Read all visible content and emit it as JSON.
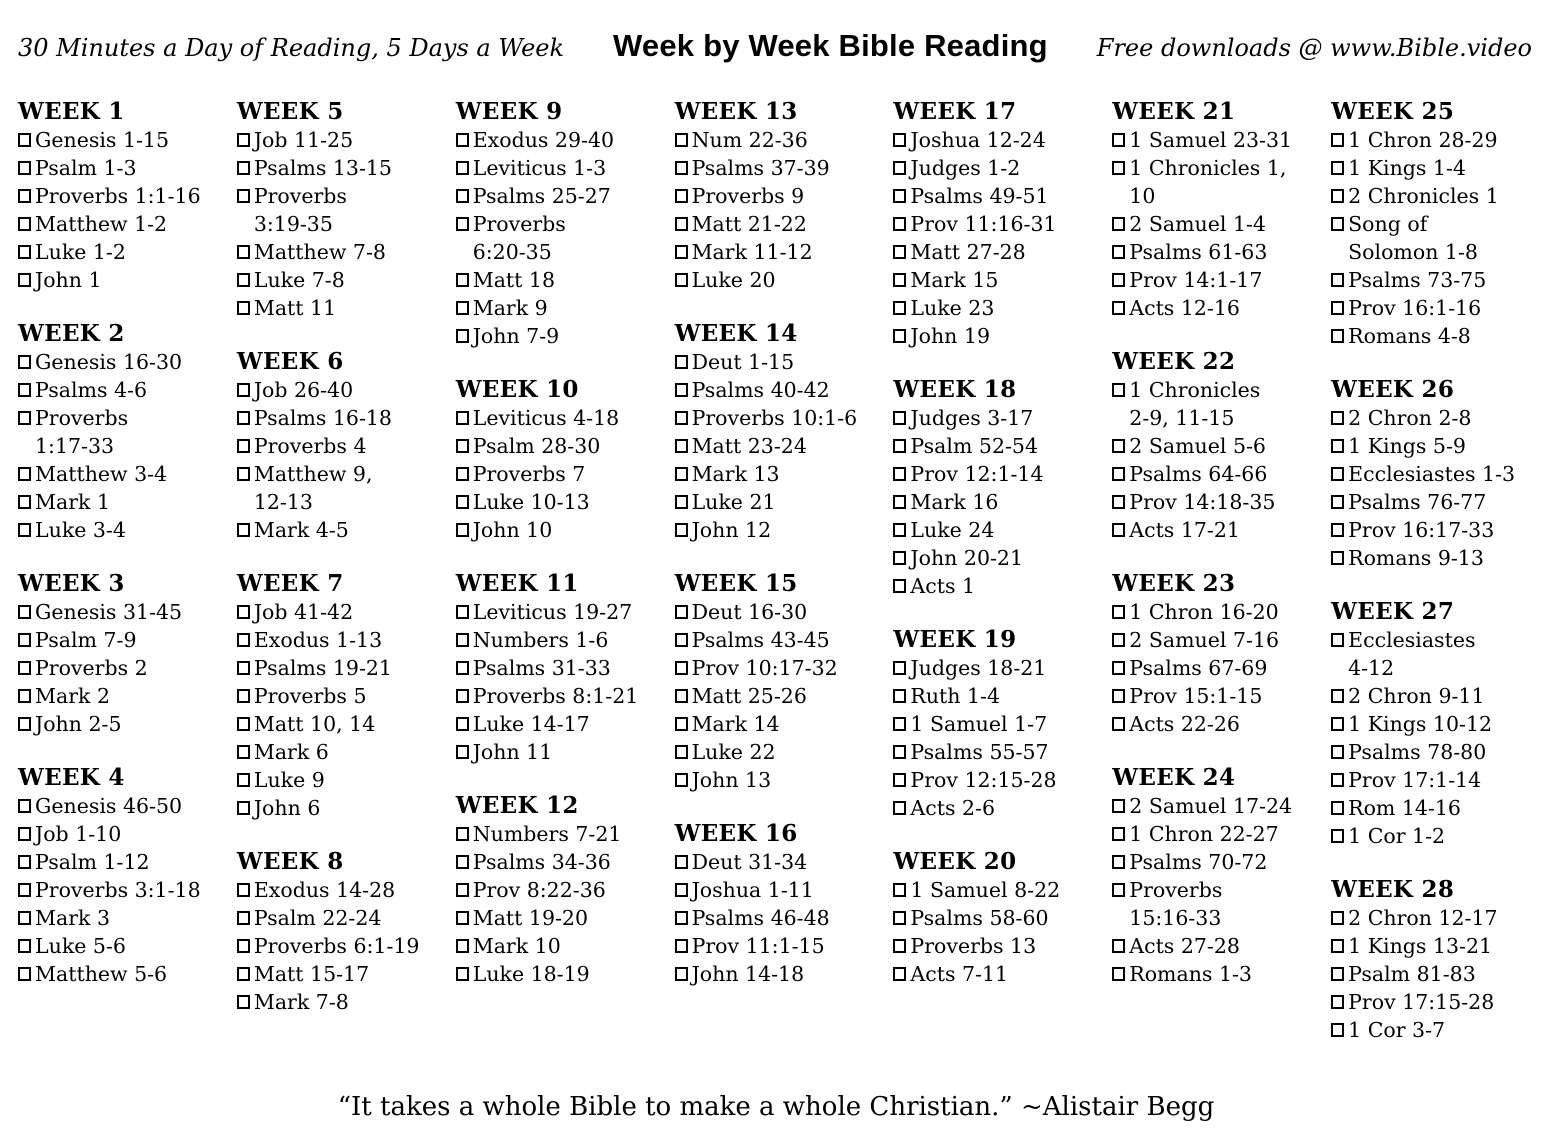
{
  "header": {
    "left_tagline": "30 Minutes a Day of Reading, 5 Days a Week",
    "title": "Week by Week Bible Reading",
    "right_tagline": "Free downloads @ www.Bible.video"
  },
  "icons": {
    "checkbox": "empty-checkbox-square"
  },
  "colors": {
    "text": "#000000",
    "background": "#ffffff"
  },
  "plan": {
    "columns": [
      {
        "weeks": [
          {
            "label": "WEEK 1",
            "items": [
              "Genesis 1-15",
              "Psalm 1-3",
              "Proverbs 1:1-16",
              "Matthew 1-2",
              "Luke 1-2",
              "John 1"
            ]
          },
          {
            "label": "WEEK 2",
            "items": [
              "Genesis 16-30",
              "Psalms 4-6",
              "Proverbs\n1:17-33",
              "Matthew 3-4",
              "Mark 1",
              "Luke 3-4"
            ]
          },
          {
            "label": "WEEK 3",
            "items": [
              "Genesis 31-45",
              "Psalm 7-9",
              "Proverbs 2",
              "Mark 2",
              "John 2-5"
            ]
          },
          {
            "label": "WEEK 4",
            "items": [
              "Genesis 46-50",
              "Job 1-10",
              "Psalm 1-12",
              "Proverbs 3:1-18",
              "Mark 3",
              "Luke 5-6",
              "Matthew 5-6"
            ]
          }
        ]
      },
      {
        "weeks": [
          {
            "label": "WEEK 5",
            "items": [
              "Job 11-25",
              "Psalms 13-15",
              "Proverbs\n3:19-35",
              "Matthew 7-8",
              "Luke 7-8",
              "Matt 11"
            ]
          },
          {
            "label": "WEEK 6",
            "items": [
              "Job 26-40",
              "Psalms 16-18",
              "Proverbs 4",
              "Matthew 9,\n12-13",
              "Mark 4-5"
            ]
          },
          {
            "label": "WEEK 7",
            "items": [
              "Job 41-42",
              "Exodus 1-13",
              "Psalms 19-21",
              "Proverbs 5",
              "Matt 10, 14",
              "Mark 6",
              "Luke 9",
              "John 6"
            ]
          },
          {
            "label": "WEEK 8",
            "items": [
              "Exodus 14-28",
              "Psalm 22-24",
              "Proverbs 6:1-19",
              "Matt 15-17",
              "Mark 7-8"
            ]
          }
        ]
      },
      {
        "weeks": [
          {
            "label": "WEEK 9",
            "items": [
              "Exodus 29-40",
              "Leviticus 1-3",
              "Psalms 25-27",
              "Proverbs\n6:20-35",
              "Matt 18",
              "Mark 9",
              "John 7-9"
            ]
          },
          {
            "label": "WEEK 10",
            "items": [
              "Leviticus 4-18",
              "Psalm 28-30",
              "Proverbs 7",
              "Luke 10-13",
              "John 10"
            ]
          },
          {
            "label": "WEEK 11",
            "items": [
              "Leviticus 19-27",
              "Numbers 1-6",
              "Psalms 31-33",
              "Proverbs 8:1-21",
              "Luke 14-17",
              "John 11"
            ]
          },
          {
            "label": "WEEK 12",
            "items": [
              "Numbers 7-21",
              "Psalms 34-36",
              "Prov 8:22-36",
              "Matt 19-20",
              "Mark 10",
              "Luke 18-19"
            ]
          }
        ]
      },
      {
        "weeks": [
          {
            "label": "WEEK 13",
            "items": [
              "Num 22-36",
              "Psalms 37-39",
              "Proverbs 9",
              "Matt 21-22",
              "Mark 11-12",
              "Luke 20"
            ]
          },
          {
            "label": "WEEK 14",
            "items": [
              "Deut 1-15",
              "Psalms 40-42",
              "Proverbs 10:1-6",
              "Matt 23-24",
              "Mark 13",
              "Luke 21",
              "John 12"
            ]
          },
          {
            "label": "WEEK 15",
            "items": [
              "Deut 16-30",
              "Psalms 43-45",
              "Prov 10:17-32",
              "Matt 25-26",
              "Mark 14",
              "Luke 22",
              "John 13"
            ]
          },
          {
            "label": "WEEK 16",
            "items": [
              "Deut 31-34",
              "Joshua 1-11",
              "Psalms 46-48",
              "Prov 11:1-15",
              "John 14-18"
            ]
          }
        ]
      },
      {
        "weeks": [
          {
            "label": "WEEK 17",
            "items": [
              "Joshua 12-24",
              "Judges 1-2",
              "Psalms 49-51",
              "Prov 11:16-31",
              "Matt 27-28",
              "Mark 15",
              "Luke 23",
              "John 19"
            ]
          },
          {
            "label": "WEEK 18",
            "items": [
              "Judges 3-17",
              "Psalm 52-54",
              "Prov 12:1-14",
              "Mark 16",
              "Luke 24",
              "John 20-21",
              "Acts 1"
            ]
          },
          {
            "label": "WEEK 19",
            "items": [
              "Judges 18-21",
              "Ruth 1-4",
              "1 Samuel 1-7",
              "Psalms 55-57",
              "Prov 12:15-28",
              "Acts 2-6"
            ]
          },
          {
            "label": "WEEK 20",
            "items": [
              "1 Samuel 8-22",
              "Psalms 58-60",
              "Proverbs 13",
              "Acts 7-11"
            ]
          }
        ]
      },
      {
        "weeks": [
          {
            "label": "WEEK 21",
            "items": [
              "1 Samuel 23-31",
              "1 Chronicles 1,\n10",
              "2 Samuel 1-4",
              "Psalms 61-63",
              "Prov 14:1-17",
              "Acts 12-16"
            ]
          },
          {
            "label": "WEEK 22",
            "items": [
              "1 Chronicles\n2-9, 11-15",
              "2 Samuel 5-6",
              "Psalms 64-66",
              "Prov 14:18-35",
              "Acts 17-21"
            ]
          },
          {
            "label": "WEEK 23",
            "items": [
              "1 Chron 16-20",
              "2 Samuel 7-16",
              "Psalms 67-69",
              "Prov 15:1-15",
              "Acts 22-26"
            ]
          },
          {
            "label": "WEEK 24",
            "items": [
              "2 Samuel 17-24",
              "1 Chron 22-27",
              "Psalms 70-72",
              "Proverbs\n15:16-33",
              "Acts 27-28",
              "Romans 1-3"
            ]
          }
        ]
      },
      {
        "weeks": [
          {
            "label": "WEEK 25",
            "items": [
              "1 Chron 28-29",
              "1 Kings 1-4",
              "2 Chronicles 1",
              "Song of\nSolomon 1-8",
              "Psalms 73-75",
              "Prov 16:1-16",
              "Romans 4-8"
            ]
          },
          {
            "label": "WEEK 26",
            "items": [
              "2 Chron 2-8",
              "1 Kings 5-9",
              "Ecclesiastes 1-3",
              "Psalms 76-77",
              "Prov 16:17-33",
              "Romans 9-13"
            ]
          },
          {
            "label": "WEEK 27",
            "items": [
              "Ecclesiastes\n4-12",
              "2 Chron 9-11",
              "1 Kings 10-12",
              "Psalms 78-80",
              "Prov 17:1-14",
              "Rom 14-16",
              "1 Cor 1-2"
            ]
          },
          {
            "label": "WEEK 28",
            "items": [
              "2 Chron 12-17",
              "1 Kings 13-21",
              "Psalm 81-83",
              "Prov 17:15-28",
              "1 Cor 3-7"
            ]
          }
        ]
      }
    ]
  },
  "footer": {
    "quote": "“It takes a whole Bible to make a whole Christian.” ~Alistair Begg"
  }
}
